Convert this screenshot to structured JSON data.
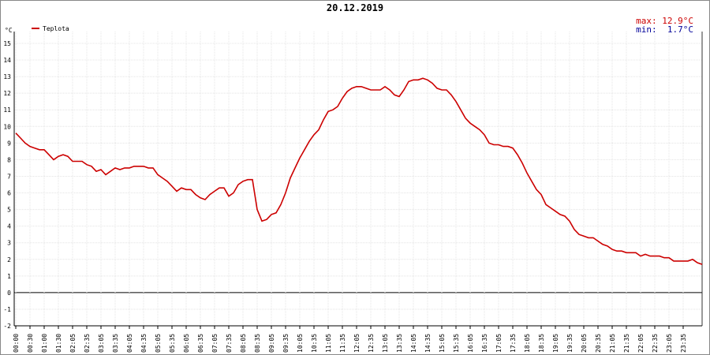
{
  "chart_data": {
    "type": "line",
    "title": "20.12.2019",
    "y_unit": "°C",
    "annotations": [
      {
        "text": "max: 12.9°C",
        "color": "#cc0000"
      },
      {
        "text": "min:  1.7°C",
        "color": "#000099"
      }
    ],
    "legend": "top-left",
    "grid": true,
    "ylim": [
      -2,
      15
    ],
    "yticks": [
      -2,
      -1,
      0,
      1,
      2,
      3,
      4,
      5,
      6,
      7,
      8,
      9,
      10,
      11,
      12,
      13,
      14,
      15
    ],
    "categories": [
      "00:00",
      null,
      null,
      "00:30",
      null,
      null,
      "01:00",
      null,
      null,
      "01:30",
      null,
      null,
      "02:05",
      null,
      null,
      "02:35",
      null,
      null,
      "03:05",
      null,
      null,
      "03:35",
      null,
      null,
      "04:05",
      null,
      null,
      "04:35",
      null,
      null,
      "05:05",
      null,
      null,
      "05:35",
      null,
      null,
      "06:05",
      null,
      null,
      "06:35",
      null,
      null,
      "07:05",
      null,
      null,
      "07:35",
      null,
      null,
      "08:05",
      null,
      null,
      "08:35",
      null,
      null,
      "09:05",
      null,
      null,
      "09:35",
      null,
      null,
      "10:05",
      null,
      null,
      "10:35",
      null,
      null,
      "11:05",
      null,
      null,
      "11:35",
      null,
      null,
      "12:05",
      null,
      null,
      "12:35",
      null,
      null,
      "13:05",
      null,
      null,
      "13:35",
      null,
      null,
      "14:05",
      null,
      null,
      "14:35",
      null,
      null,
      "15:05",
      null,
      null,
      "15:35",
      null,
      null,
      "16:05",
      null,
      null,
      "16:35",
      null,
      null,
      "17:05",
      null,
      null,
      "17:35",
      null,
      null,
      "18:05",
      null,
      null,
      "18:35",
      null,
      null,
      "19:05",
      null,
      null,
      "19:35",
      null,
      null,
      "20:05",
      null,
      null,
      "20:35",
      null,
      null,
      "21:05",
      null,
      null,
      "21:35",
      null,
      null,
      "22:05",
      null,
      null,
      "22:35",
      null,
      null,
      "23:05",
      null,
      null,
      "23:35",
      null,
      null,
      null,
      null
    ],
    "series": [
      {
        "name": "Teplota",
        "color": "#cc0000",
        "values": [
          9.6,
          9.3,
          9.0,
          8.8,
          8.7,
          8.6,
          8.6,
          8.3,
          8.0,
          8.2,
          8.3,
          8.2,
          7.9,
          7.9,
          7.9,
          7.7,
          7.6,
          7.3,
          7.4,
          7.1,
          7.3,
          7.5,
          7.4,
          7.5,
          7.5,
          7.6,
          7.6,
          7.6,
          7.5,
          7.5,
          7.1,
          6.9,
          6.7,
          6.4,
          6.1,
          6.3,
          6.2,
          6.2,
          5.9,
          5.7,
          5.6,
          5.9,
          6.1,
          6.3,
          6.3,
          5.8,
          6.0,
          6.5,
          6.7,
          6.8,
          6.8,
          5.0,
          4.3,
          4.4,
          4.7,
          4.8,
          5.3,
          6.0,
          6.9,
          7.5,
          8.1,
          8.6,
          9.1,
          9.5,
          9.8,
          10.4,
          10.9,
          11.0,
          11.2,
          11.7,
          12.1,
          12.3,
          12.4,
          12.4,
          12.3,
          12.2,
          12.2,
          12.2,
          12.4,
          12.2,
          11.9,
          11.8,
          12.2,
          12.7,
          12.8,
          12.8,
          12.9,
          12.8,
          12.6,
          12.3,
          12.2,
          12.2,
          11.9,
          11.5,
          11.0,
          10.5,
          10.2,
          10.0,
          9.8,
          9.5,
          9.0,
          8.9,
          8.9,
          8.8,
          8.8,
          8.7,
          8.3,
          7.8,
          7.2,
          6.7,
          6.2,
          5.9,
          5.3,
          5.1,
          4.9,
          4.7,
          4.6,
          4.3,
          3.8,
          3.5,
          3.4,
          3.3,
          3.3,
          3.1,
          2.9,
          2.8,
          2.6,
          2.5,
          2.5,
          2.4,
          2.4,
          2.4,
          2.2,
          2.3,
          2.2,
          2.2,
          2.2,
          2.1,
          2.1,
          1.9,
          1.9,
          1.9,
          1.9,
          2.0,
          1.8,
          1.7
        ]
      }
    ]
  }
}
